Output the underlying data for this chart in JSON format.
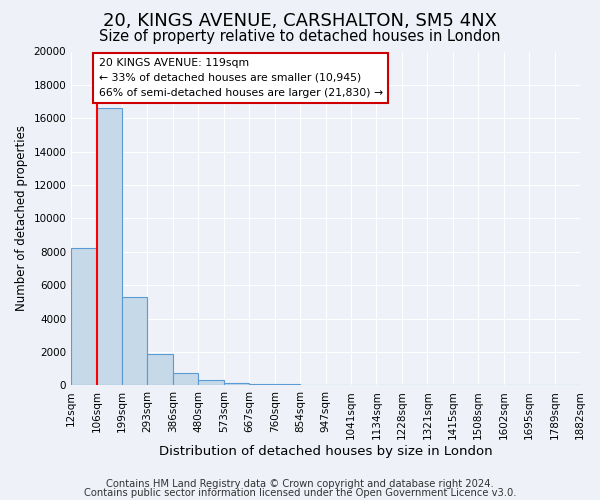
{
  "title1": "20, KINGS AVENUE, CARSHALTON, SM5 4NX",
  "title2": "Size of property relative to detached houses in London",
  "xlabel": "Distribution of detached houses by size in London",
  "ylabel": "Number of detached properties",
  "bar_color": "#c5d9e8",
  "bar_edge_color": "#5b9bd5",
  "bin_labels": [
    "12sqm",
    "106sqm",
    "199sqm",
    "293sqm",
    "386sqm",
    "480sqm",
    "573sqm",
    "667sqm",
    "760sqm",
    "854sqm",
    "947sqm",
    "1041sqm",
    "1134sqm",
    "1228sqm",
    "1321sqm",
    "1415sqm",
    "1508sqm",
    "1602sqm",
    "1695sqm",
    "1789sqm",
    "1882sqm"
  ],
  "bar_values": [
    8200,
    16600,
    5300,
    1850,
    750,
    300,
    150,
    80,
    100,
    0,
    0,
    0,
    0,
    0,
    0,
    0,
    0,
    0,
    0,
    0
  ],
  "ylim": [
    0,
    20000
  ],
  "yticks": [
    0,
    2000,
    4000,
    6000,
    8000,
    10000,
    12000,
    14000,
    16000,
    18000,
    20000
  ],
  "red_line_x": 1,
  "annotation_box_text": "20 KINGS AVENUE: 119sqm\n← 33% of detached houses are smaller (10,945)\n66% of semi-detached houses are larger (21,830) →",
  "footer1": "Contains HM Land Registry data © Crown copyright and database right 2024.",
  "footer2": "Contains public sector information licensed under the Open Government Licence v3.0.",
  "background_color": "#eef2f8",
  "plot_bg_color": "#eef2f8",
  "grid_color": "#ffffff",
  "title1_fontsize": 13,
  "title2_fontsize": 10.5,
  "xlabel_fontsize": 9.5,
  "ylabel_fontsize": 8.5,
  "tick_fontsize": 7.5,
  "footer_fontsize": 7.2
}
